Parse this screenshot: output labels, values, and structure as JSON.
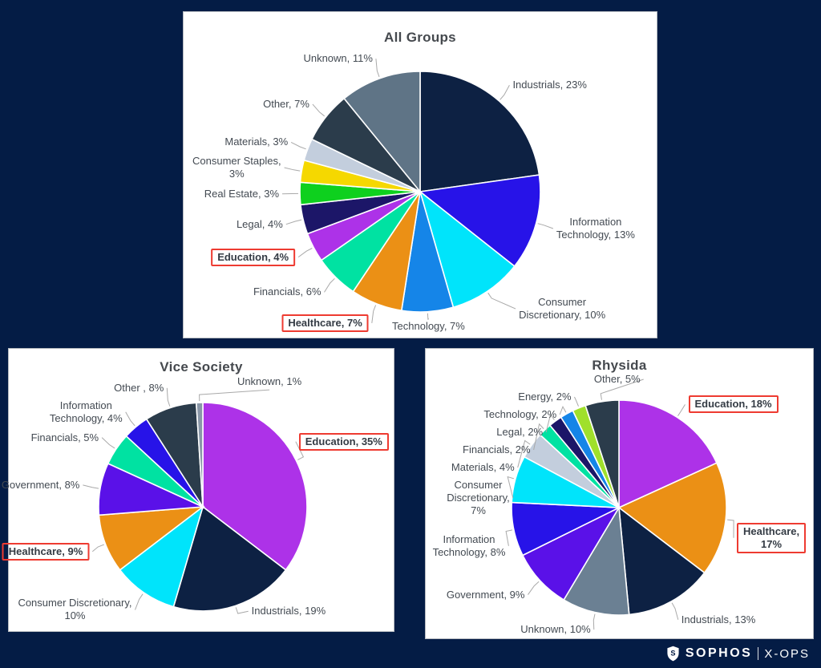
{
  "page": {
    "background": "#041c45",
    "card_background": "#ffffff",
    "highlight_box_color": "#ee3b31",
    "leader_line_color": "#a9a9a9"
  },
  "footer_logo": {
    "brand": "SOPHOS",
    "separator": "|",
    "division": "X-OPS",
    "shield_letter": "S"
  },
  "chart_data": [
    {
      "type": "pie",
      "title": "All Groups",
      "unit": "percent",
      "start_angle": "top",
      "direction": "clockwise",
      "legend": "none",
      "slices": [
        {
          "sector": "Industrials",
          "value": 23,
          "display": "Industrials, 23%",
          "color": "#0d2143",
          "highlighted": false
        },
        {
          "sector": "Information Technology",
          "value": 13,
          "display": "Information\nTechnology, 13%",
          "color": "#2713e8",
          "highlighted": false
        },
        {
          "sector": "Consumer Discretionary",
          "value": 10,
          "display": "Consumer\nDiscretionary, 10%",
          "color": "#00e4fb",
          "highlighted": false
        },
        {
          "sector": "Technology",
          "value": 7,
          "display": "Technology, 7%",
          "color": "#1585e8",
          "highlighted": false
        },
        {
          "sector": "Healthcare",
          "value": 7,
          "display": "Healthcare, 7%",
          "color": "#eb9015",
          "highlighted": true
        },
        {
          "sector": "Financials",
          "value": 6,
          "display": "Financials, 6%",
          "color": "#00e2a2",
          "highlighted": false
        },
        {
          "sector": "Education",
          "value": 4,
          "display": "Education, 4%",
          "color": "#ad32e8",
          "highlighted": true
        },
        {
          "sector": "Legal",
          "value": 4,
          "display": "Legal, 4%",
          "color": "#1c1668",
          "highlighted": false
        },
        {
          "sector": "Real Estate",
          "value": 3,
          "display": "Real Estate, 3%",
          "color": "#0ed01e",
          "highlighted": false
        },
        {
          "sector": "Consumer Staples",
          "value": 3,
          "display": "Consumer Staples,\n3%",
          "color": "#f5d800",
          "highlighted": false
        },
        {
          "sector": "Materials",
          "value": 3,
          "display": "Materials, 3%",
          "color": "#c3cedd",
          "highlighted": false
        },
        {
          "sector": "Other",
          "value": 7,
          "display": "Other, 7%",
          "color": "#2b3c4b",
          "highlighted": false
        },
        {
          "sector": "Unknown",
          "value": 11,
          "display": "Unknown, 11%",
          "color": "#5f7486",
          "highlighted": false
        }
      ]
    },
    {
      "type": "pie",
      "title": "Vice Society",
      "unit": "percent",
      "start_angle": "top",
      "direction": "clockwise",
      "legend": "none",
      "slices": [
        {
          "sector": "Education",
          "value": 35,
          "display": "Education, 35%",
          "color": "#ad32e8",
          "highlighted": true
        },
        {
          "sector": "Industrials",
          "value": 19,
          "display": "Industrials, 19%",
          "color": "#0d2143",
          "highlighted": false
        },
        {
          "sector": "Consumer Discretionary",
          "value": 10,
          "display": "Consumer Discretionary,\n10%",
          "color": "#00e4fb",
          "highlighted": false
        },
        {
          "sector": "Healthcare",
          "value": 9,
          "display": "Healthcare, 9%",
          "color": "#eb9015",
          "highlighted": true
        },
        {
          "sector": "Government",
          "value": 8,
          "display": "Government, 8%",
          "color": "#5a11e8",
          "highlighted": false
        },
        {
          "sector": "Financials",
          "value": 5,
          "display": "Financials, 5%",
          "color": "#00e2a2",
          "highlighted": false
        },
        {
          "sector": "Information Technology",
          "value": 4,
          "display": "Information\nTechnology, 4%",
          "color": "#2713e8",
          "highlighted": false
        },
        {
          "sector": "Other",
          "value": 8,
          "display": "Other , 8%",
          "color": "#2b3c4b",
          "highlighted": false
        },
        {
          "sector": "Unknown",
          "value": 1,
          "display": "Unknown, 1%",
          "color": "#8a97a8",
          "highlighted": false
        }
      ]
    },
    {
      "type": "pie",
      "title": "Rhysida",
      "unit": "percent",
      "start_angle": "top",
      "direction": "clockwise",
      "legend": "none",
      "slices": [
        {
          "sector": "Education",
          "value": 18,
          "display": "Education, 18%",
          "color": "#ad32e8",
          "highlighted": true
        },
        {
          "sector": "Healthcare",
          "value": 17,
          "display": "Healthcare,\n17%",
          "color": "#eb9015",
          "highlighted": true
        },
        {
          "sector": "Industrials",
          "value": 13,
          "display": "Industrials, 13%",
          "color": "#0d2143",
          "highlighted": false
        },
        {
          "sector": "Unknown",
          "value": 10,
          "display": "Unknown, 10%",
          "color": "#6b8093",
          "highlighted": false
        },
        {
          "sector": "Government",
          "value": 9,
          "display": "Government, 9%",
          "color": "#5a11e8",
          "highlighted": false
        },
        {
          "sector": "Information Technology",
          "value": 8,
          "display": "Information\nTechnology, 8%",
          "color": "#2713e8",
          "highlighted": false
        },
        {
          "sector": "Consumer Discretionary",
          "value": 7,
          "display": "Consumer\nDiscretionary,\n7%",
          "color": "#00e4fb",
          "highlighted": false
        },
        {
          "sector": "Materials",
          "value": 4,
          "display": "Materials, 4%",
          "color": "#c3cedd",
          "highlighted": false
        },
        {
          "sector": "Financials",
          "value": 2,
          "display": "Financials, 2%",
          "color": "#00e2a2",
          "highlighted": false
        },
        {
          "sector": "Legal",
          "value": 2,
          "display": "Legal, 2%",
          "color": "#1c1668",
          "highlighted": false
        },
        {
          "sector": "Technology",
          "value": 2,
          "display": "Technology, 2%",
          "color": "#1585e8",
          "highlighted": false
        },
        {
          "sector": "Energy",
          "value": 2,
          "display": "Energy, 2%",
          "color": "#a0e02b",
          "highlighted": false
        },
        {
          "sector": "Other",
          "value": 5,
          "display": "Other, 5%",
          "color": "#2b3c4b",
          "highlighted": false
        }
      ]
    }
  ]
}
